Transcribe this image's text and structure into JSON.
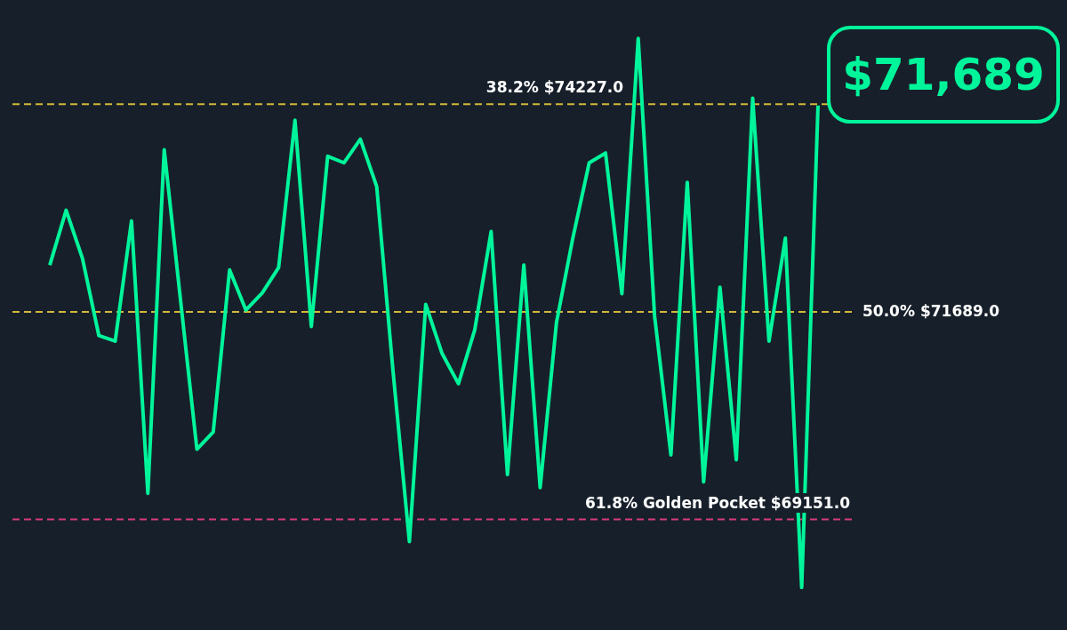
{
  "chart_data": {
    "type": "line",
    "categories": [
      null,
      null,
      null,
      null,
      null,
      null,
      null,
      null,
      null,
      null,
      null,
      null,
      null,
      null,
      null,
      null,
      null,
      null,
      null,
      null,
      null,
      null,
      null,
      null,
      null,
      null,
      null,
      null,
      null,
      null,
      null,
      null,
      null,
      null,
      null,
      null,
      null,
      null,
      null,
      null,
      null,
      null,
      null,
      null,
      null,
      null,
      null,
      null
    ],
    "series": [
      {
        "color": "#00f59b",
        "values": [
          72260,
          72930,
          72340,
          71400,
          71330,
          72800,
          69470,
          73670,
          71830,
          70010,
          70220,
          72200,
          71710,
          71920,
          72230,
          74030,
          71510,
          73590,
          73510,
          73800,
          73220,
          70960,
          68880,
          71780,
          71180,
          70810,
          71470,
          72670,
          69700,
          72260,
          69540,
          71560,
          72590,
          73510,
          73630,
          71910,
          75030,
          71640,
          69940,
          73270,
          69610,
          71990,
          69880,
          74300,
          71330,
          72590,
          68320,
          74210
        ]
      }
    ],
    "ylim": [
      67800,
      75500
    ],
    "ref_lines": [
      {
        "axis": "y",
        "value": 74227,
        "label": "38.2% $74227.0",
        "color": "#d4b83a",
        "line_style": "dashed"
      },
      {
        "axis": "y",
        "value": 71689,
        "label": "50.0% $71689.0",
        "color": "#d4b83a",
        "line_style": "dashed"
      },
      {
        "axis": "y",
        "value": 69151,
        "label": "61.8% Golden Pocket $69151.0",
        "color": "#d63a7a",
        "line_style": "dashed"
      }
    ],
    "annotations": [
      "$71,689"
    ],
    "grid": false,
    "legend": false,
    "marker": "none",
    "line_style": "solid"
  }
}
